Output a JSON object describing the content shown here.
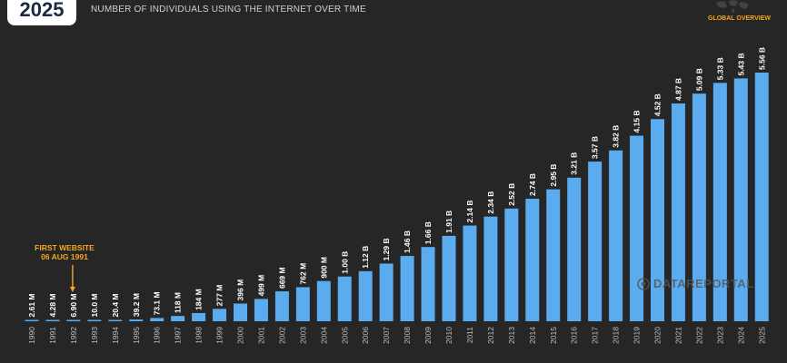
{
  "header": {
    "year": "2025",
    "subtitle": "NUMBER OF INDIVIDUALS USING THE INTERNET OVER TIME",
    "region": "GLOBAL OVERVIEW"
  },
  "annotation": {
    "line1": "FIRST WEBSITE",
    "line2": "06 AUG 1991"
  },
  "watermark": "DATAREPORTAL",
  "colors": {
    "bar": "#5aacef",
    "background": "#262626",
    "accent": "#f5a623",
    "label": "#ffffff",
    "axis": "#bdbdbd"
  },
  "chart_data": {
    "type": "bar",
    "title": "NUMBER OF INDIVIDUALS USING THE INTERNET OVER TIME",
    "categories": [
      "1990",
      "1991",
      "1992",
      "1993",
      "1994",
      "1995",
      "1996",
      "1997",
      "1998",
      "1999",
      "2000",
      "2001",
      "2002",
      "2003",
      "2004",
      "2005",
      "2006",
      "2007",
      "2008",
      "2009",
      "2010",
      "2011",
      "2012",
      "2013",
      "2014",
      "2015",
      "2016",
      "2017",
      "2018",
      "2019",
      "2020",
      "2021",
      "2022",
      "2023",
      "2024",
      "2025"
    ],
    "values": [
      0.00261,
      0.00428,
      0.0069,
      0.01,
      0.0204,
      0.0392,
      0.0731,
      0.118,
      0.184,
      0.277,
      0.396,
      0.499,
      0.669,
      0.762,
      0.9,
      1.0,
      1.12,
      1.29,
      1.46,
      1.66,
      1.91,
      2.14,
      2.34,
      2.52,
      2.74,
      2.95,
      3.21,
      3.57,
      3.82,
      4.15,
      4.52,
      4.87,
      5.09,
      5.33,
      5.43,
      5.56
    ],
    "data_labels": [
      "2.61 M",
      "4.28 M",
      "6.90 M",
      "10.0 M",
      "20.4 M",
      "39.2 M",
      "73.1 M",
      "118 M",
      "184 M",
      "277 M",
      "396 M",
      "499 M",
      "669 M",
      "762 M",
      "900 M",
      "1.00 B",
      "1.12 B",
      "1.29 B",
      "1.46 B",
      "1.66 B",
      "1.91 B",
      "2.14 B",
      "2.34 B",
      "2.52 B",
      "2.74 B",
      "2.95 B",
      "3.21 B",
      "3.57 B",
      "3.82 B",
      "4.15 B",
      "4.52 B",
      "4.87 B",
      "5.09 B",
      "5.33 B",
      "5.43 B",
      "5.56 B"
    ],
    "unit": "billions",
    "ylim": [
      0,
      5.56
    ],
    "grid": false,
    "legend": "none"
  }
}
